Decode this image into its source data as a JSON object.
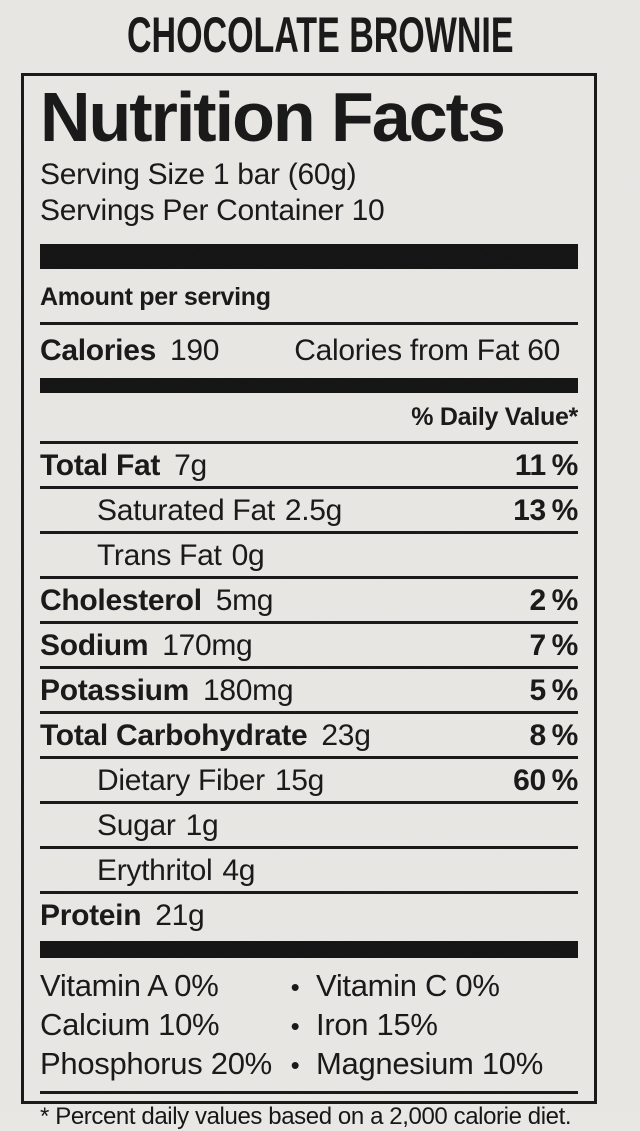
{
  "product_title": "CHOCOLATE BROWNIE",
  "label": {
    "title": "Nutrition Facts",
    "serving_size": "Serving Size 1 bar (60g)",
    "servings_per_container": "Servings Per Container 10",
    "amount_per_serving": "Amount per serving",
    "calories_label": "Calories",
    "calories_value": "190",
    "calories_from_fat": "Calories from Fat 60",
    "daily_value_header": "% Daily Value*",
    "rows": [
      {
        "name": "Total Fat",
        "amount": "7g",
        "dv": "11 %",
        "bold": true,
        "indent": false
      },
      {
        "name": "Saturated Fat",
        "amount": "2.5g",
        "dv": "13 %",
        "bold": false,
        "indent": true
      },
      {
        "name": "Trans Fat",
        "amount": "0g",
        "dv": "",
        "bold": false,
        "indent": true
      },
      {
        "name": "Cholesterol",
        "amount": "5mg",
        "dv": "2 %",
        "bold": true,
        "indent": false
      },
      {
        "name": "Sodium",
        "amount": "170mg",
        "dv": "7 %",
        "bold": true,
        "indent": false
      },
      {
        "name": "Potassium",
        "amount": "180mg",
        "dv": "5 %",
        "bold": true,
        "indent": false
      },
      {
        "name": "Total Carbohydrate",
        "amount": "23g",
        "dv": "8 %",
        "bold": true,
        "indent": false
      },
      {
        "name": "Dietary Fiber",
        "amount": "15g",
        "dv": "60 %",
        "bold": false,
        "indent": true
      },
      {
        "name": "Sugar",
        "amount": "1g",
        "dv": "",
        "bold": false,
        "indent": true
      },
      {
        "name": "Erythritol",
        "amount": "4g",
        "dv": "",
        "bold": false,
        "indent": true
      },
      {
        "name": "Protein",
        "amount": "21g",
        "dv": "",
        "bold": true,
        "indent": false
      }
    ],
    "bullet": "•",
    "micronutrients": [
      {
        "left": "Vitamin A 0%",
        "right": "Vitamin C 0%"
      },
      {
        "left": "Calcium 10%",
        "right": "Iron 15%"
      },
      {
        "left": "Phosphorus 20%",
        "right": "Magnesium 10%"
      }
    ],
    "footnote": "* Percent daily values based on a 2,000 calorie diet."
  },
  "colors": {
    "paper": "#e8e7e4",
    "ink": "#161616"
  }
}
